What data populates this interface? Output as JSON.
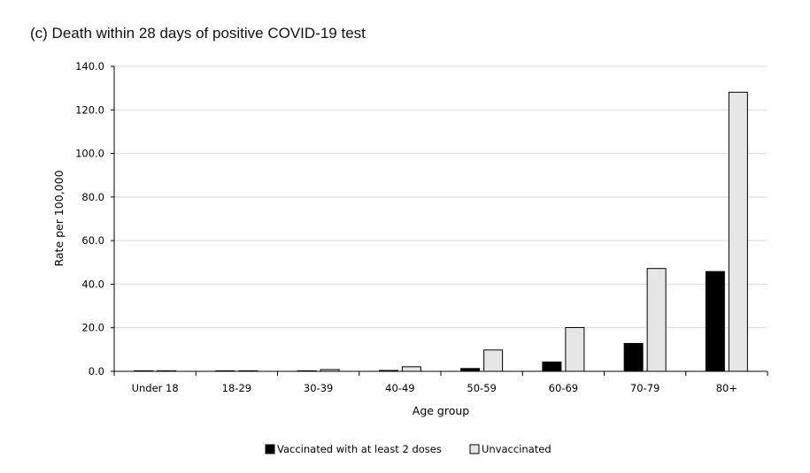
{
  "chart_data": {
    "type": "bar",
    "title": "(c) Death within 28 days of positive COVID-19 test",
    "xlabel": "Age group",
    "ylabel": "Rate per 100,000",
    "ylim": [
      0,
      140
    ],
    "yticks": [
      "0.0",
      "20.0",
      "40.0",
      "60.0",
      "80.0",
      "100.0",
      "120.0",
      "140.0"
    ],
    "categories": [
      "Under 18",
      "18-29",
      "30-39",
      "40-49",
      "50-59",
      "60-69",
      "70-79",
      "80+"
    ],
    "grid": true,
    "legend_position": "bottom",
    "series": [
      {
        "name": "Vaccinated with at least 2 doses",
        "color": "#000000",
        "values": [
          0.0,
          0.1,
          0.2,
          0.4,
          1.3,
          4.3,
          12.8,
          45.8
        ]
      },
      {
        "name": "Unvaccinated",
        "color": "#e6e6e6",
        "values": [
          0.1,
          0.2,
          0.8,
          2.1,
          9.8,
          20.1,
          47.2,
          128.1
        ]
      }
    ]
  }
}
